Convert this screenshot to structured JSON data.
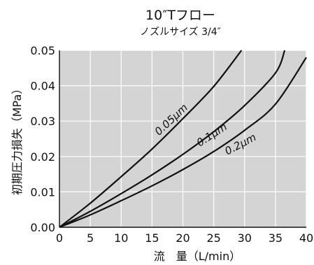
{
  "chart_data": {
    "type": "line",
    "title": "10″Tフロー",
    "subtitle": "ノズルサイズ 3/4″",
    "xlabel": "流　量（L/min）",
    "ylabel": "初期圧力損失（MPa）",
    "xlim": [
      0,
      40
    ],
    "ylim": [
      0,
      0.05
    ],
    "x_ticks": [
      0,
      5,
      10,
      15,
      20,
      25,
      30,
      35,
      40
    ],
    "y_ticks": [
      0.0,
      0.01,
      0.02,
      0.03,
      0.04,
      0.05
    ],
    "x_tick_labels": [
      "0",
      "5",
      "10",
      "15",
      "20",
      "25",
      "30",
      "35",
      "40"
    ],
    "y_tick_labels": [
      "0.00",
      "0.01",
      "0.02",
      "0.03",
      "0.04",
      "0.05"
    ],
    "grid": true,
    "background": "#d4d4d4",
    "series": [
      {
        "name": "0.05μm",
        "points": [
          [
            0,
            0
          ],
          [
            5,
            0.0068
          ],
          [
            10,
            0.0143
          ],
          [
            15,
            0.0221
          ],
          [
            20,
            0.0307
          ],
          [
            25,
            0.0398
          ],
          [
            29.5,
            0.05
          ]
        ]
      },
      {
        "name": "0.1μm",
        "points": [
          [
            0,
            0
          ],
          [
            5,
            0.0045
          ],
          [
            10,
            0.0095
          ],
          [
            15,
            0.0148
          ],
          [
            20,
            0.0206
          ],
          [
            25,
            0.027
          ],
          [
            30,
            0.0344
          ],
          [
            35,
            0.0436
          ],
          [
            36.5,
            0.05
          ]
        ]
      },
      {
        "name": "0.2μm",
        "points": [
          [
            0,
            0
          ],
          [
            5,
            0.0035
          ],
          [
            10,
            0.0075
          ],
          [
            15,
            0.0117
          ],
          [
            20,
            0.0163
          ],
          [
            25,
            0.0214
          ],
          [
            30,
            0.0274
          ],
          [
            35,
            0.0348
          ],
          [
            40,
            0.048
          ]
        ]
      }
    ]
  }
}
